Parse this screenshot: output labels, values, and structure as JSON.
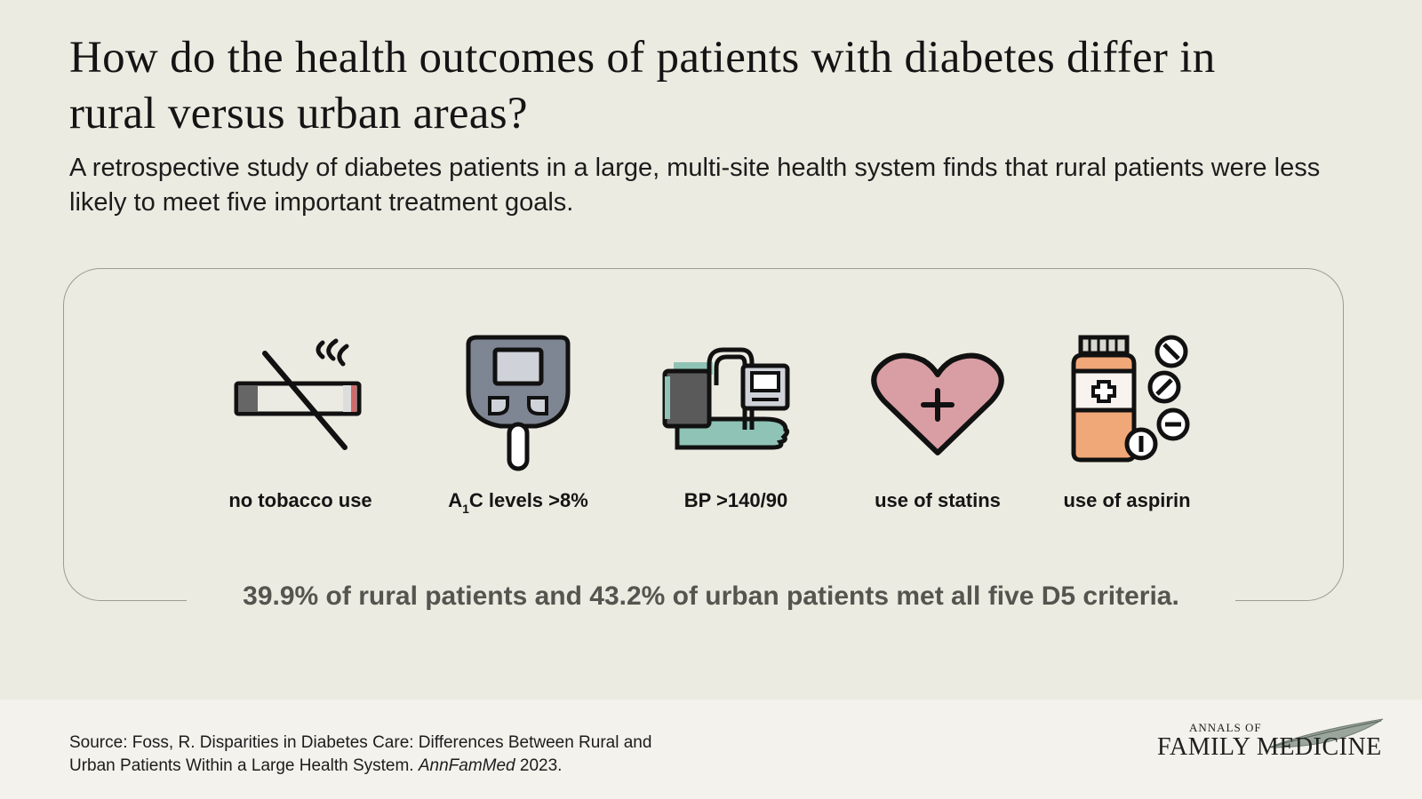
{
  "header": {
    "title": "How do the health outcomes of patients with diabetes differ in rural versus urban areas?",
    "subtitle": "A retrospective study of diabetes patients in a large, multi-site health system finds that rural patients were less likely to meet five important treatment goals."
  },
  "criteria": [
    {
      "label": "no tobacco use",
      "icon": "no-smoking-icon"
    },
    {
      "label_prefix": "A",
      "label_sub": "1",
      "label_suffix": "C levels >8%",
      "icon": "glucose-meter-icon"
    },
    {
      "label": "BP >140/90",
      "icon": "blood-pressure-monitor-icon"
    },
    {
      "label": "use of statins",
      "icon": "heart-plus-icon"
    },
    {
      "label": "use of aspirin",
      "icon": "pill-bottle-icon"
    }
  ],
  "summary": "39.9% of rural patients and 43.2% of urban patients met all five D5 criteria.",
  "footer": {
    "source_main": "Source:  Foss, R. Disparities in Diabetes Care: Differences Between Rural and Urban Patients Within a Large Health System. ",
    "source_journal": "AnnFamMed",
    "source_year": " 2023.",
    "logo_top": "ANNALS OF",
    "logo_bottom": "FAMILY MEDICINE"
  },
  "colors": {
    "background": "#ecebe1",
    "footer_bg": "#f3f2ec",
    "teal": "#8fc3b5",
    "pink": "#d99ea3",
    "orange": "#f0a878",
    "summary_text": "#555550"
  }
}
